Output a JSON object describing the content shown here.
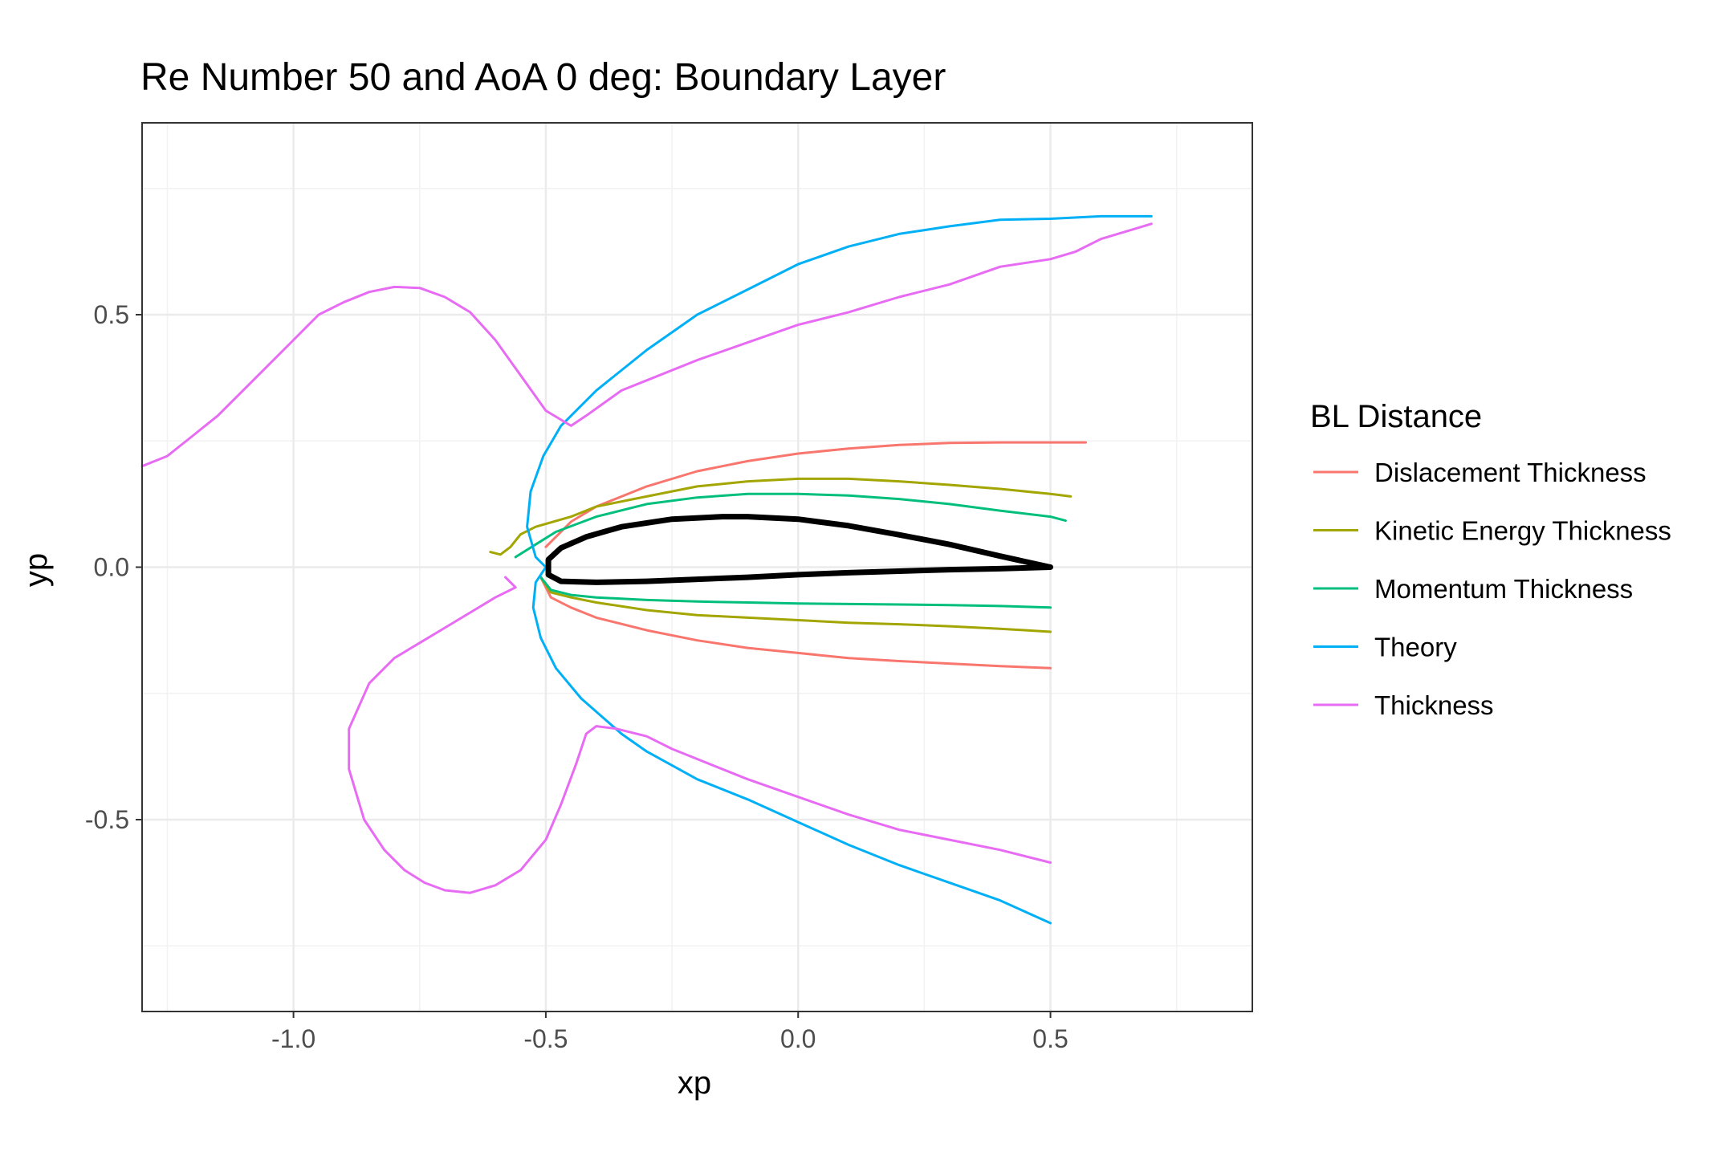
{
  "chart_data": {
    "type": "line",
    "title": "Re Number 50 and AoA 0 deg: Boundary Layer",
    "xlabel": "xp",
    "ylabel": "yp",
    "xlim": [
      -1.3,
      0.9
    ],
    "ylim": [
      -0.88,
      0.88
    ],
    "x_ticks": [
      -1.0,
      -0.5,
      0.0,
      0.5
    ],
    "x_tick_labels": [
      "-1.0",
      "-0.5",
      "0.0",
      "0.5"
    ],
    "y_ticks": [
      -0.5,
      0.0,
      0.5
    ],
    "y_tick_labels": [
      "-0.5",
      "0.0",
      "0.5"
    ],
    "grid": true,
    "legend": {
      "title": "BL Distance",
      "placement": "right"
    },
    "series": [
      {
        "name": "Dislacement Thickness",
        "color": "#F8766D",
        "segments": [
          [
            [
              -0.5,
              0.04
            ],
            [
              -0.45,
              0.09
            ],
            [
              -0.4,
              0.12
            ],
            [
              -0.3,
              0.16
            ],
            [
              -0.2,
              0.19
            ],
            [
              -0.1,
              0.21
            ],
            [
              0.0,
              0.225
            ],
            [
              0.1,
              0.235
            ],
            [
              0.2,
              0.242
            ],
            [
              0.3,
              0.246
            ],
            [
              0.4,
              0.247
            ],
            [
              0.5,
              0.247
            ],
            [
              0.57,
              0.247
            ]
          ],
          [
            [
              -0.51,
              -0.02
            ],
            [
              -0.49,
              -0.06
            ],
            [
              -0.45,
              -0.08
            ],
            [
              -0.4,
              -0.1
            ],
            [
              -0.3,
              -0.125
            ],
            [
              -0.2,
              -0.145
            ],
            [
              -0.1,
              -0.16
            ],
            [
              0.0,
              -0.17
            ],
            [
              0.1,
              -0.18
            ],
            [
              0.2,
              -0.186
            ],
            [
              0.3,
              -0.191
            ],
            [
              0.4,
              -0.196
            ],
            [
              0.5,
              -0.2
            ]
          ]
        ]
      },
      {
        "name": "Kinetic Energy Thickness",
        "color": "#A3A500",
        "segments": [
          [
            [
              -0.61,
              0.03
            ],
            [
              -0.59,
              0.025
            ],
            [
              -0.57,
              0.04
            ],
            [
              -0.55,
              0.065
            ],
            [
              -0.52,
              0.08
            ],
            [
              -0.45,
              0.1
            ],
            [
              -0.4,
              0.12
            ],
            [
              -0.3,
              0.14
            ],
            [
              -0.2,
              0.16
            ],
            [
              -0.1,
              0.17
            ],
            [
              0.0,
              0.175
            ],
            [
              0.1,
              0.175
            ],
            [
              0.2,
              0.17
            ],
            [
              0.3,
              0.163
            ],
            [
              0.4,
              0.155
            ],
            [
              0.5,
              0.145
            ],
            [
              0.54,
              0.14
            ]
          ],
          [
            [
              -0.51,
              -0.02
            ],
            [
              -0.49,
              -0.05
            ],
            [
              -0.45,
              -0.06
            ],
            [
              -0.4,
              -0.07
            ],
            [
              -0.3,
              -0.085
            ],
            [
              -0.2,
              -0.095
            ],
            [
              -0.1,
              -0.1
            ],
            [
              0.0,
              -0.105
            ],
            [
              0.1,
              -0.11
            ],
            [
              0.2,
              -0.113
            ],
            [
              0.3,
              -0.117
            ],
            [
              0.4,
              -0.122
            ],
            [
              0.5,
              -0.128
            ]
          ]
        ]
      },
      {
        "name": "Momentum Thickness",
        "color": "#00BF7D",
        "segments": [
          [
            [
              -0.56,
              0.02
            ],
            [
              -0.52,
              0.045
            ],
            [
              -0.48,
              0.07
            ],
            [
              -0.4,
              0.1
            ],
            [
              -0.3,
              0.125
            ],
            [
              -0.2,
              0.138
            ],
            [
              -0.1,
              0.145
            ],
            [
              0.0,
              0.145
            ],
            [
              0.1,
              0.142
            ],
            [
              0.2,
              0.135
            ],
            [
              0.3,
              0.125
            ],
            [
              0.4,
              0.112
            ],
            [
              0.5,
              0.1
            ],
            [
              0.53,
              0.092
            ]
          ],
          [
            [
              -0.51,
              -0.02
            ],
            [
              -0.49,
              -0.045
            ],
            [
              -0.45,
              -0.055
            ],
            [
              -0.4,
              -0.06
            ],
            [
              -0.3,
              -0.065
            ],
            [
              -0.2,
              -0.068
            ],
            [
              -0.1,
              -0.07
            ],
            [
              0.0,
              -0.072
            ],
            [
              0.1,
              -0.073
            ],
            [
              0.2,
              -0.074
            ],
            [
              0.3,
              -0.075
            ],
            [
              0.4,
              -0.077
            ],
            [
              0.5,
              -0.08
            ]
          ]
        ]
      },
      {
        "name": "Theory",
        "color": "#00B0F6",
        "segments": [
          [
            [
              -0.5,
              0.0
            ],
            [
              -0.52,
              0.02
            ],
            [
              -0.537,
              0.08
            ],
            [
              -0.53,
              0.15
            ],
            [
              -0.505,
              0.22
            ],
            [
              -0.47,
              0.28
            ],
            [
              -0.4,
              0.35
            ],
            [
              -0.3,
              0.43
            ],
            [
              -0.2,
              0.5
            ],
            [
              -0.1,
              0.55
            ],
            [
              0.0,
              0.6
            ],
            [
              0.1,
              0.635
            ],
            [
              0.2,
              0.66
            ],
            [
              0.3,
              0.675
            ],
            [
              0.4,
              0.688
            ],
            [
              0.5,
              0.69
            ],
            [
              0.6,
              0.695
            ],
            [
              0.7,
              0.695
            ]
          ],
          [
            [
              -0.5,
              0.0
            ],
            [
              -0.52,
              -0.03
            ],
            [
              -0.525,
              -0.08
            ],
            [
              -0.51,
              -0.14
            ],
            [
              -0.48,
              -0.2
            ],
            [
              -0.43,
              -0.26
            ],
            [
              -0.35,
              -0.33
            ],
            [
              -0.3,
              -0.365
            ],
            [
              -0.2,
              -0.42
            ],
            [
              -0.1,
              -0.46
            ],
            [
              0.0,
              -0.505
            ],
            [
              0.1,
              -0.55
            ],
            [
              0.2,
              -0.59
            ],
            [
              0.3,
              -0.625
            ],
            [
              0.4,
              -0.66
            ],
            [
              0.5,
              -0.705
            ]
          ]
        ]
      },
      {
        "name": "Thickness",
        "color": "#E76BF3",
        "segments": [
          [
            [
              -1.3,
              0.2
            ],
            [
              -1.25,
              0.22
            ],
            [
              -1.2,
              0.26
            ],
            [
              -1.15,
              0.3
            ],
            [
              -1.1,
              0.35
            ],
            [
              -1.05,
              0.4
            ],
            [
              -1.0,
              0.45
            ],
            [
              -0.95,
              0.5
            ],
            [
              -0.9,
              0.525
            ],
            [
              -0.85,
              0.545
            ],
            [
              -0.8,
              0.555
            ],
            [
              -0.75,
              0.553
            ],
            [
              -0.7,
              0.535
            ],
            [
              -0.65,
              0.505
            ],
            [
              -0.6,
              0.45
            ],
            [
              -0.55,
              0.38
            ],
            [
              -0.5,
              0.31
            ],
            [
              -0.45,
              0.28
            ],
            [
              -0.42,
              0.3
            ],
            [
              -0.35,
              0.35
            ],
            [
              -0.3,
              0.37
            ],
            [
              -0.2,
              0.41
            ],
            [
              -0.1,
              0.445
            ],
            [
              0.0,
              0.48
            ],
            [
              0.1,
              0.505
            ],
            [
              0.2,
              0.535
            ],
            [
              0.3,
              0.56
            ],
            [
              0.4,
              0.595
            ],
            [
              0.5,
              0.61
            ],
            [
              0.55,
              0.625
            ],
            [
              0.6,
              0.65
            ],
            [
              0.7,
              0.68
            ]
          ],
          [
            [
              -0.58,
              -0.02
            ],
            [
              -0.56,
              -0.04
            ],
            [
              -0.6,
              -0.06
            ],
            [
              -0.65,
              -0.09
            ],
            [
              -0.7,
              -0.12
            ],
            [
              -0.75,
              -0.15
            ],
            [
              -0.8,
              -0.18
            ],
            [
              -0.85,
              -0.23
            ],
            [
              -0.89,
              -0.32
            ],
            [
              -0.89,
              -0.4
            ],
            [
              -0.86,
              -0.5
            ],
            [
              -0.82,
              -0.56
            ],
            [
              -0.78,
              -0.6
            ],
            [
              -0.74,
              -0.625
            ],
            [
              -0.7,
              -0.64
            ],
            [
              -0.65,
              -0.645
            ],
            [
              -0.6,
              -0.63
            ],
            [
              -0.55,
              -0.6
            ],
            [
              -0.5,
              -0.54
            ],
            [
              -0.47,
              -0.47
            ],
            [
              -0.44,
              -0.39
            ],
            [
              -0.42,
              -0.33
            ],
            [
              -0.4,
              -0.315
            ],
            [
              -0.36,
              -0.32
            ],
            [
              -0.3,
              -0.335
            ],
            [
              -0.25,
              -0.36
            ],
            [
              -0.2,
              -0.38
            ],
            [
              -0.1,
              -0.42
            ],
            [
              0.0,
              -0.455
            ],
            [
              0.1,
              -0.49
            ],
            [
              0.2,
              -0.52
            ],
            [
              0.3,
              -0.54
            ],
            [
              0.4,
              -0.56
            ],
            [
              0.5,
              -0.585
            ]
          ]
        ]
      }
    ],
    "airfoil": {
      "color": "#000000",
      "points": [
        [
          0.5,
          0.0
        ],
        [
          0.4,
          0.022
        ],
        [
          0.3,
          0.045
        ],
        [
          0.2,
          0.064
        ],
        [
          0.1,
          0.082
        ],
        [
          0.0,
          0.095
        ],
        [
          -0.1,
          0.1
        ],
        [
          -0.15,
          0.1
        ],
        [
          -0.25,
          0.095
        ],
        [
          -0.35,
          0.08
        ],
        [
          -0.42,
          0.06
        ],
        [
          -0.47,
          0.038
        ],
        [
          -0.495,
          0.015
        ],
        [
          -0.495,
          -0.015
        ],
        [
          -0.47,
          -0.028
        ],
        [
          -0.4,
          -0.03
        ],
        [
          -0.3,
          -0.028
        ],
        [
          -0.2,
          -0.024
        ],
        [
          -0.1,
          -0.02
        ],
        [
          0.0,
          -0.015
        ],
        [
          0.1,
          -0.011
        ],
        [
          0.2,
          -0.008
        ],
        [
          0.3,
          -0.005
        ],
        [
          0.4,
          -0.003
        ],
        [
          0.5,
          0.0
        ]
      ]
    }
  }
}
